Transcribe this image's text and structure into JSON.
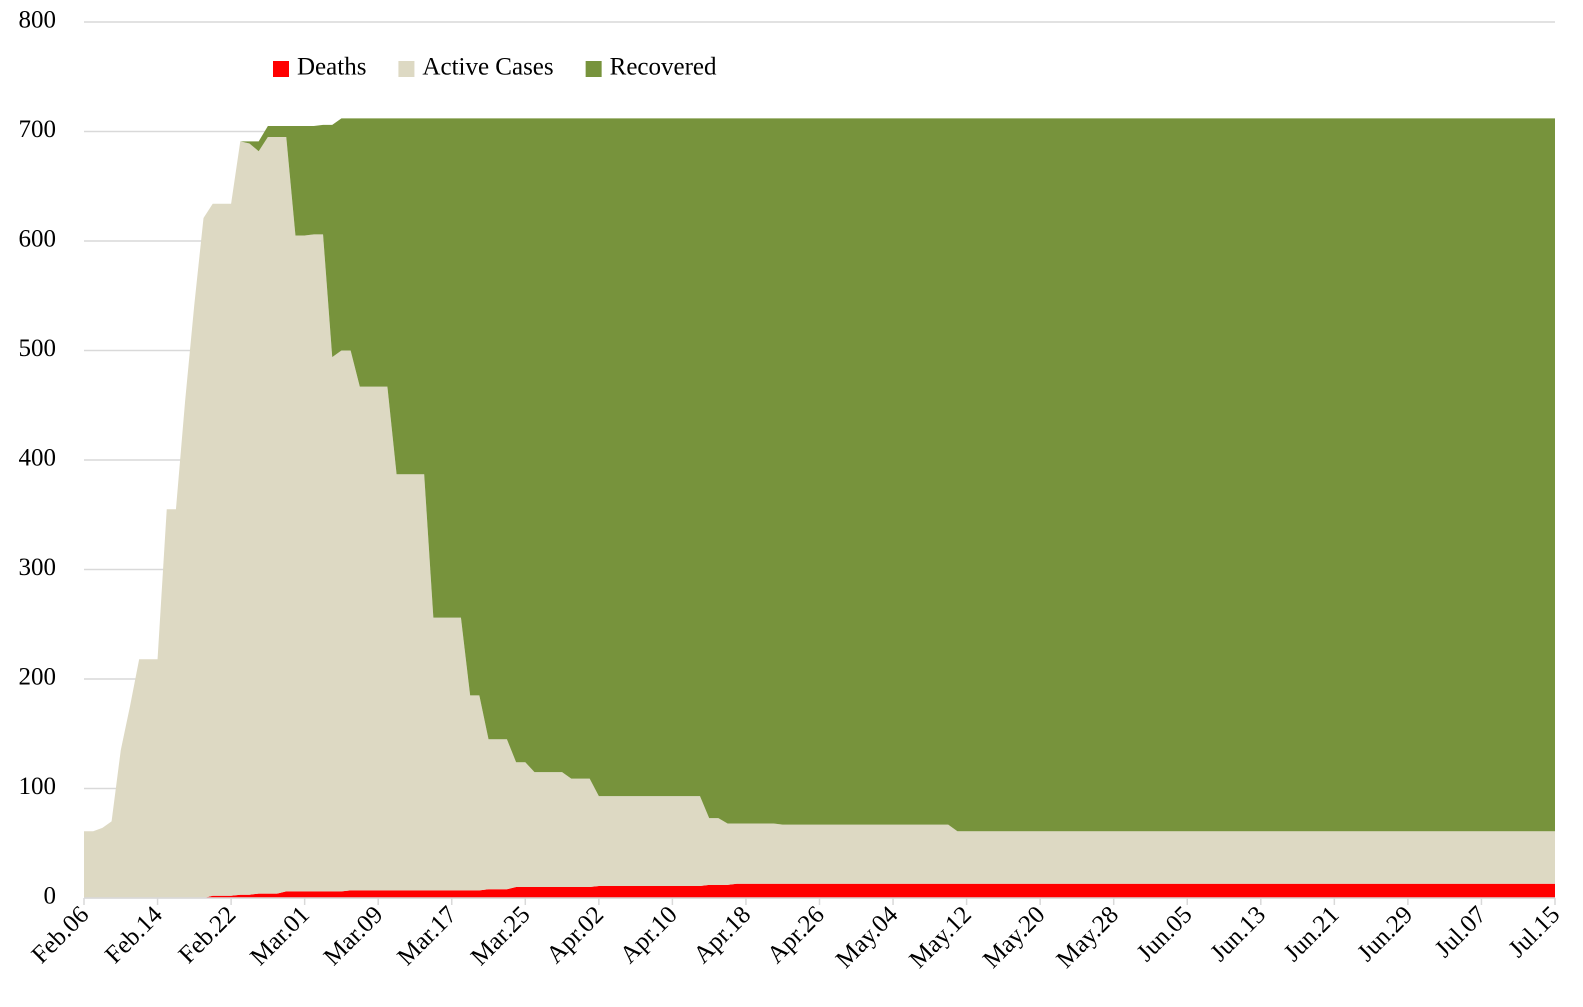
{
  "chart_data": {
    "type": "stacked_area",
    "categories": [
      "Feb.06",
      null,
      null,
      null,
      null,
      null,
      null,
      null,
      "Feb.14",
      null,
      null,
      null,
      null,
      null,
      null,
      null,
      "Feb.22",
      null,
      null,
      null,
      null,
      null,
      null,
      null,
      "Mar.01",
      null,
      null,
      null,
      null,
      null,
      null,
      null,
      "Mar.09",
      null,
      null,
      null,
      null,
      null,
      null,
      null,
      "Mar.17",
      null,
      null,
      null,
      null,
      null,
      null,
      null,
      "Mar.25",
      null,
      null,
      null,
      null,
      null,
      null,
      null,
      "Apr.02",
      null,
      null,
      null,
      null,
      null,
      null,
      null,
      "Apr.10",
      null,
      null,
      null,
      null,
      null,
      null,
      null,
      "Apr.18",
      null,
      null,
      null,
      null,
      null,
      null,
      null,
      "Apr.26",
      null,
      null,
      null,
      null,
      null,
      null,
      null,
      "May.04",
      null,
      null,
      null,
      null,
      null,
      null,
      null,
      "May.12",
      null,
      null,
      null,
      null,
      null,
      null,
      null,
      "May.20",
      null,
      null,
      null,
      null,
      null,
      null,
      null,
      "May.28",
      null,
      null,
      null,
      null,
      null,
      null,
      null,
      "Jun.05",
      null,
      null,
      null,
      null,
      null,
      null,
      null,
      "Jun.13",
      null,
      null,
      null,
      null,
      null,
      null,
      null,
      "Jun.21",
      null,
      null,
      null,
      null,
      null,
      null,
      null,
      "Jun.29",
      null,
      null,
      null,
      null,
      null,
      null,
      null,
      "Jul.07",
      null,
      null,
      null,
      null,
      null,
      null,
      null,
      "Jul.15"
    ],
    "series": [
      {
        "name": "Deaths",
        "color": "#ff0000",
        "values": [
          0,
          0,
          0,
          0,
          0,
          0,
          0,
          0,
          0,
          0,
          0,
          0,
          0,
          0,
          2,
          2,
          2,
          3,
          3,
          4,
          4,
          4,
          6,
          6,
          6,
          6,
          6,
          6,
          6,
          7,
          7,
          7,
          7,
          7,
          7,
          7,
          7,
          7,
          7,
          7,
          7,
          7,
          7,
          7,
          8,
          8,
          8,
          10,
          10,
          10,
          10,
          10,
          10,
          10,
          10,
          10,
          11,
          11,
          11,
          11,
          11,
          11,
          11,
          11,
          11,
          11,
          11,
          11,
          12,
          12,
          12,
          13,
          13,
          13,
          13,
          13,
          13,
          13,
          13,
          13,
          13,
          13,
          13,
          13,
          13,
          13,
          13,
          13,
          13,
          13,
          13,
          13,
          13,
          13,
          13,
          13,
          13,
          13,
          13,
          13,
          13,
          13,
          13,
          13,
          13,
          13,
          13,
          13,
          13,
          13,
          13,
          13,
          13,
          13,
          13,
          13,
          13,
          13,
          13,
          13,
          13,
          13,
          13,
          13,
          13,
          13,
          13,
          13,
          13,
          13,
          13,
          13,
          13,
          13,
          13,
          13,
          13,
          13,
          13,
          13,
          13,
          13,
          13,
          13,
          13,
          13,
          13,
          13,
          13,
          13,
          13,
          13,
          13,
          13,
          13,
          13,
          13,
          13,
          13,
          13,
          13
        ]
      },
      {
        "name": "Active Cases",
        "color": "#ddd9c3",
        "values": [
          61,
          61,
          64,
          70,
          135,
          175,
          218,
          218,
          218,
          355,
          355,
          454,
          542,
          621,
          632,
          632,
          632,
          688,
          686,
          678,
          691,
          691,
          689,
          599,
          599,
          600,
          600,
          488,
          494,
          493,
          460,
          460,
          460,
          460,
          380,
          380,
          380,
          380,
          249,
          249,
          249,
          249,
          178,
          178,
          137,
          137,
          137,
          114,
          114,
          105,
          105,
          105,
          105,
          99,
          99,
          99,
          82,
          82,
          82,
          82,
          82,
          82,
          82,
          82,
          82,
          82,
          82,
          82,
          61,
          61,
          56,
          55,
          55,
          55,
          55,
          55,
          54,
          54,
          54,
          54,
          54,
          54,
          54,
          54,
          54,
          54,
          54,
          54,
          54,
          54,
          54,
          54,
          54,
          54,
          54,
          48,
          48,
          48,
          48,
          48,
          48,
          48,
          48,
          48,
          48,
          48,
          48,
          48,
          48,
          48,
          48,
          48,
          48,
          48,
          48,
          48,
          48,
          48,
          48,
          48,
          48,
          48,
          48,
          48,
          48,
          48,
          48,
          48,
          48,
          48,
          48,
          48,
          48,
          48,
          48,
          48,
          48,
          48,
          48,
          48,
          48,
          48,
          48,
          48,
          48,
          48,
          48,
          48,
          48,
          48,
          48,
          48,
          48,
          48,
          48,
          48,
          48,
          48,
          48,
          48,
          48
        ]
      },
      {
        "name": "Recovered",
        "color": "#77933c",
        "values": [
          0,
          0,
          0,
          0,
          0,
          0,
          0,
          0,
          0,
          0,
          0,
          0,
          0,
          0,
          0,
          0,
          0,
          0,
          2,
          9,
          10,
          10,
          10,
          100,
          100,
          99,
          100,
          212,
          212,
          212,
          245,
          245,
          245,
          245,
          325,
          325,
          325,
          325,
          456,
          456,
          456,
          456,
          527,
          527,
          567,
          567,
          567,
          588,
          588,
          597,
          597,
          597,
          597,
          603,
          603,
          603,
          619,
          619,
          619,
          619,
          619,
          619,
          619,
          619,
          619,
          619,
          619,
          619,
          639,
          639,
          644,
          644,
          644,
          644,
          644,
          644,
          645,
          645,
          645,
          645,
          645,
          645,
          645,
          645,
          645,
          645,
          645,
          645,
          645,
          645,
          645,
          645,
          645,
          645,
          645,
          651,
          651,
          651,
          651,
          651,
          651,
          651,
          651,
          651,
          651,
          651,
          651,
          651,
          651,
          651,
          651,
          651,
          651,
          651,
          651,
          651,
          651,
          651,
          651,
          651,
          651,
          651,
          651,
          651,
          651,
          651,
          651,
          651,
          651,
          651,
          651,
          651,
          651,
          651,
          651,
          651,
          651,
          651,
          651,
          651,
          651,
          651,
          651,
          651,
          651,
          651,
          651,
          651,
          651,
          651,
          651,
          651,
          651,
          651,
          651,
          651,
          651,
          651,
          651,
          651,
          651
        ]
      }
    ],
    "ylim": [
      0,
      800
    ],
    "yticks": [
      0,
      100,
      200,
      300,
      400,
      500,
      600,
      700,
      800
    ],
    "grid": true,
    "legend": "top"
  }
}
